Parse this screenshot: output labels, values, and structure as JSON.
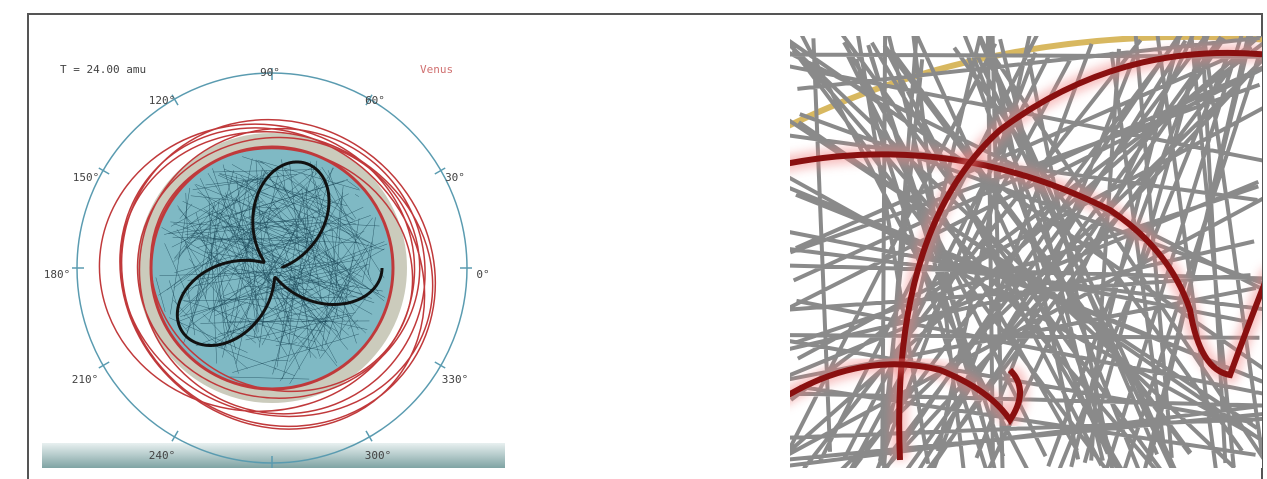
{
  "header": {
    "time_label": "T = 24.00 amu",
    "legend_label": "Venus"
  },
  "polar_axis": {
    "angle_labels": [
      "90°",
      "60°",
      "30°",
      "0°",
      "330°",
      "300°",
      "240°",
      "210°",
      "180°",
      "150°",
      "120°"
    ]
  }
}
